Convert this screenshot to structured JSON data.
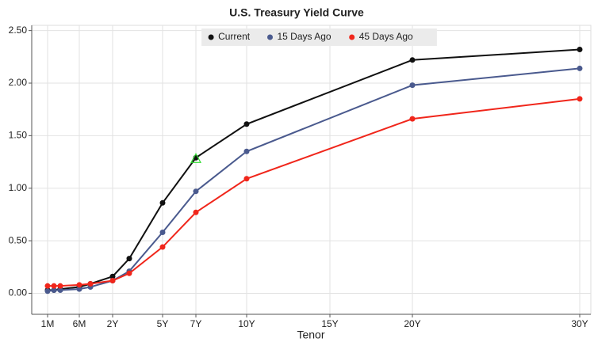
{
  "chart_data": {
    "type": "line",
    "title": "U.S. Treasury Yield Curve",
    "x_label": "Tenor",
    "x": [
      0.0833,
      0.1667,
      0.25,
      0.5,
      1,
      2,
      3,
      5,
      7,
      10,
      20,
      30
    ],
    "series": [
      {
        "name": "Current",
        "color": "#111111",
        "values": [
          0.03,
          0.03,
          0.04,
          0.06,
          0.09,
          0.16,
          0.33,
          0.86,
          1.29,
          1.61,
          2.22,
          2.32
        ]
      },
      {
        "name": "15 Days Ago",
        "color": "#4a5a8e",
        "values": [
          0.02,
          0.03,
          0.03,
          0.04,
          0.06,
          0.12,
          0.21,
          0.58,
          0.97,
          1.35,
          1.98,
          2.14
        ]
      },
      {
        "name": "45 Days Ago",
        "color": "#f0261b",
        "values": [
          0.07,
          0.07,
          0.07,
          0.08,
          0.09,
          0.12,
          0.19,
          0.44,
          0.77,
          1.09,
          1.66,
          1.85
        ]
      }
    ],
    "xticks": [
      {
        "value": 0.0833,
        "label": "1M"
      },
      {
        "value": 0.5,
        "label": "6M"
      },
      {
        "value": 2,
        "label": "2Y"
      },
      {
        "value": 5,
        "label": "5Y"
      },
      {
        "value": 7,
        "label": "7Y"
      },
      {
        "value": 10,
        "label": "10Y"
      },
      {
        "value": 15,
        "label": "15Y"
      },
      {
        "value": 20,
        "label": "20Y"
      },
      {
        "value": 30,
        "label": "30Y"
      }
    ],
    "ylim": [
      -0.2,
      2.55
    ],
    "yticks": [
      {
        "value": 0,
        "label": "0.00"
      },
      {
        "value": 0.5,
        "label": "0.50"
      },
      {
        "value": 1,
        "label": "1.00"
      },
      {
        "value": 1.5,
        "label": "1.50"
      },
      {
        "value": 2,
        "label": "2.00"
      },
      {
        "value": 2.5,
        "label": "2.50"
      }
    ],
    "grid": true,
    "legend": "top"
  }
}
